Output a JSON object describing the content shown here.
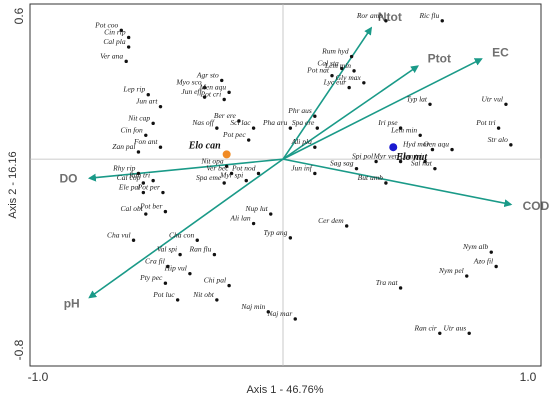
{
  "chart_data": {
    "type": "scatter",
    "subtype": "biplot",
    "xlabel": "Axis 1 - 46.76%",
    "ylabel": "Axis 2 - 16.16",
    "xlim": [
      -1.0,
      1.0
    ],
    "ylim": [
      -0.8,
      0.6
    ],
    "x_tick_labels": [
      {
        "value": -1.0,
        "label": "-1.0"
      },
      {
        "value": 1.0,
        "label": "1.0"
      }
    ],
    "y_tick_labels": [
      {
        "value": 0.6,
        "label": "0.6"
      },
      {
        "value": -0.8,
        "label": "-0.8"
      }
    ],
    "zero_lines": true,
    "colors": {
      "arrow": "#1a9a88",
      "point": "#111111",
      "site_elo_can": "#f08a24",
      "site_elo_nut": "#1a1ad0",
      "env_label": "#707070",
      "zero_line": "#bbbbbb"
    },
    "environmental_vectors": [
      {
        "label": "Ntot",
        "x": 0.36,
        "y": 0.55
      },
      {
        "label": "Ptot",
        "x": 0.55,
        "y": 0.39
      },
      {
        "label": "EC",
        "x": 0.81,
        "y": 0.42
      },
      {
        "label": "COD",
        "x": 0.93,
        "y": -0.19
      },
      {
        "label": "DO",
        "x": -0.79,
        "y": -0.08
      },
      {
        "label": "pH",
        "x": -0.79,
        "y": -0.58
      }
    ],
    "sites": [
      {
        "label": "Elo can",
        "x": -0.23,
        "y": 0.02,
        "color": "#f08a24"
      },
      {
        "label": "Elo nut",
        "x": 0.45,
        "y": 0.05,
        "color": "#1a1ad0"
      }
    ],
    "species": [
      {
        "label": "Pot coo",
        "x": -0.66,
        "y": 0.54
      },
      {
        "label": "Cin rip",
        "x": -0.63,
        "y": 0.51
      },
      {
        "label": "Cal pla",
        "x": -0.63,
        "y": 0.47
      },
      {
        "label": "Ver ana",
        "x": -0.64,
        "y": 0.41
      },
      {
        "label": "Ror amp",
        "x": 0.42,
        "y": 0.58
      },
      {
        "label": "Ric flu",
        "x": 0.65,
        "y": 0.58
      },
      {
        "label": "Rum hyd",
        "x": 0.28,
        "y": 0.43
      },
      {
        "label": "Cal sta",
        "x": 0.24,
        "y": 0.38
      },
      {
        "label": "Lem min",
        "x": 0.29,
        "y": 0.37
      },
      {
        "label": "Pot nat",
        "x": 0.2,
        "y": 0.35
      },
      {
        "label": "Lyc eur",
        "x": 0.27,
        "y": 0.3
      },
      {
        "label": "Gly max",
        "x": 0.33,
        "y": 0.32
      },
      {
        "label": "Agr sto",
        "x": -0.25,
        "y": 0.33
      },
      {
        "label": "Myo sco",
        "x": -0.32,
        "y": 0.3
      },
      {
        "label": "Men aqu",
        "x": -0.22,
        "y": 0.28
      },
      {
        "label": "Jun eff",
        "x": -0.32,
        "y": 0.26
      },
      {
        "label": "Pot cri",
        "x": -0.24,
        "y": 0.25
      },
      {
        "label": "Lep rip",
        "x": -0.55,
        "y": 0.27
      },
      {
        "label": "Jun art",
        "x": -0.5,
        "y": 0.22
      },
      {
        "label": "Nit cap",
        "x": -0.53,
        "y": 0.15
      },
      {
        "label": "Cin fon",
        "x": -0.56,
        "y": 0.1
      },
      {
        "label": "Zan pal",
        "x": -0.59,
        "y": 0.03
      },
      {
        "label": "Fon ant",
        "x": -0.5,
        "y": 0.05
      },
      {
        "label": "Nas off",
        "x": -0.27,
        "y": 0.13
      },
      {
        "label": "Ber ere",
        "x": -0.18,
        "y": 0.16
      },
      {
        "label": "Sci lac",
        "x": -0.12,
        "y": 0.13
      },
      {
        "label": "Pot pec",
        "x": -0.14,
        "y": 0.08
      },
      {
        "label": "Pha aru",
        "x": 0.03,
        "y": 0.13
      },
      {
        "label": "Phr aus",
        "x": 0.13,
        "y": 0.18
      },
      {
        "label": "Spa ere",
        "x": 0.14,
        "y": 0.13
      },
      {
        "label": "Ali pla",
        "x": 0.13,
        "y": 0.05
      },
      {
        "label": "Typ lat",
        "x": 0.6,
        "y": 0.23
      },
      {
        "label": "Iri pse",
        "x": 0.48,
        "y": 0.13
      },
      {
        "label": "Lem min",
        "x": 0.56,
        "y": 0.1
      },
      {
        "label": "Utr vul",
        "x": 0.91,
        "y": 0.23
      },
      {
        "label": "Pot tri",
        "x": 0.88,
        "y": 0.13
      },
      {
        "label": "Str alo",
        "x": 0.93,
        "y": 0.06
      },
      {
        "label": "Hyd mor",
        "x": 0.61,
        "y": 0.04
      },
      {
        "label": "Oen aqu",
        "x": 0.69,
        "y": 0.04
      },
      {
        "label": "Spi pol",
        "x": 0.38,
        "y": -0.01
      },
      {
        "label": "Myr ver",
        "x": 0.48,
        "y": -0.01
      },
      {
        "label": "Lem tri",
        "x": 0.58,
        "y": -0.01
      },
      {
        "label": "Sal nat",
        "x": 0.62,
        "y": -0.04
      },
      {
        "label": "Sag sag",
        "x": 0.3,
        "y": -0.04
      },
      {
        "label": "Jun inf",
        "x": 0.13,
        "y": -0.06
      },
      {
        "label": "But umb",
        "x": 0.42,
        "y": -0.1
      },
      {
        "label": "Rhy rip",
        "x": -0.59,
        "y": -0.06
      },
      {
        "label": "Ran tri",
        "x": -0.53,
        "y": -0.09
      },
      {
        "label": "Cal cop",
        "x": -0.57,
        "y": -0.1
      },
      {
        "label": "Ele pal",
        "x": -0.57,
        "y": -0.14
      },
      {
        "label": "Pot per",
        "x": -0.49,
        "y": -0.14
      },
      {
        "label": "Nit opa",
        "x": -0.23,
        "y": -0.03
      },
      {
        "label": "Ver bec",
        "x": -0.21,
        "y": -0.06
      },
      {
        "label": "Pot nod",
        "x": -0.1,
        "y": -0.06
      },
      {
        "label": "Myr spi",
        "x": -0.15,
        "y": -0.09
      },
      {
        "label": "Spa eme",
        "x": -0.24,
        "y": -0.1
      },
      {
        "label": "Cal obt",
        "x": -0.56,
        "y": -0.23
      },
      {
        "label": "Pot ber",
        "x": -0.48,
        "y": -0.22
      },
      {
        "label": "Nup lut",
        "x": -0.05,
        "y": -0.23
      },
      {
        "label": "Ali lan",
        "x": -0.12,
        "y": -0.27
      },
      {
        "label": "Cer dem",
        "x": 0.26,
        "y": -0.28
      },
      {
        "label": "Typ ang",
        "x": 0.03,
        "y": -0.33
      },
      {
        "label": "Cha vul",
        "x": -0.61,
        "y": -0.34
      },
      {
        "label": "Cha con",
        "x": -0.35,
        "y": -0.34
      },
      {
        "label": "Val spi",
        "x": -0.42,
        "y": -0.4
      },
      {
        "label": "Ran flu",
        "x": -0.28,
        "y": -0.4
      },
      {
        "label": "Cra fil",
        "x": -0.47,
        "y": -0.45
      },
      {
        "label": "Hip vul",
        "x": -0.38,
        "y": -0.48
      },
      {
        "label": "Pty pec",
        "x": -0.48,
        "y": -0.52
      },
      {
        "label": "Chi pal",
        "x": -0.22,
        "y": -0.53
      },
      {
        "label": "Pot luc",
        "x": -0.43,
        "y": -0.59
      },
      {
        "label": "Nit obt",
        "x": -0.27,
        "y": -0.59
      },
      {
        "label": "Naj min",
        "x": -0.06,
        "y": -0.64
      },
      {
        "label": "Naj mar",
        "x": 0.05,
        "y": -0.67
      },
      {
        "label": "Nym alb",
        "x": 0.85,
        "y": -0.39
      },
      {
        "label": "Azo fil",
        "x": 0.87,
        "y": -0.45
      },
      {
        "label": "Nym pel",
        "x": 0.75,
        "y": -0.49
      },
      {
        "label": "Tra nat",
        "x": 0.48,
        "y": -0.54
      },
      {
        "label": "Ran cir",
        "x": 0.64,
        "y": -0.73
      },
      {
        "label": "Utr aus",
        "x": 0.76,
        "y": -0.73
      }
    ]
  }
}
